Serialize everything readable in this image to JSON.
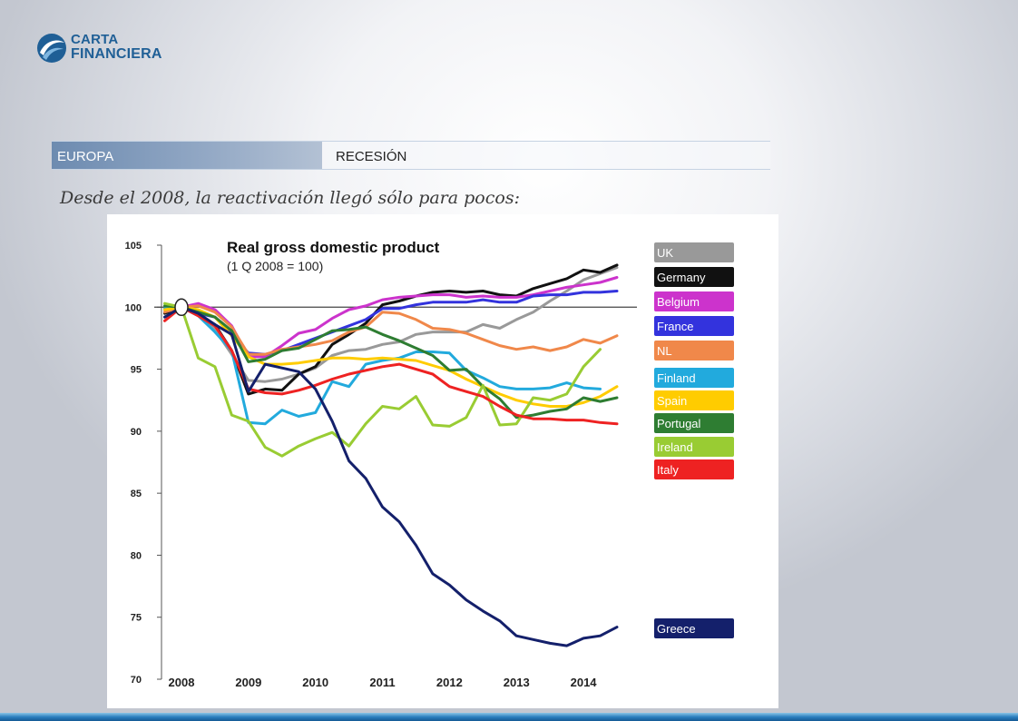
{
  "brand": {
    "line1": "CARTA",
    "line2": "FINANCIERA",
    "color": "#1f5f96"
  },
  "header": {
    "section": "EUROPA",
    "topic": "RECESIÓN"
  },
  "subtitle": "Desde el 2008, la reactivación llegó sólo para pocos:",
  "chart_data": {
    "type": "line",
    "title": "Real gross domestic product",
    "subtitle": "(1 Q 2008 = 100)",
    "xlabel": "",
    "ylabel": "",
    "x_ticks": [
      "2008",
      "2009",
      "2010",
      "2011",
      "2012",
      "2013",
      "2014"
    ],
    "y_ticks": [
      70,
      75,
      80,
      85,
      90,
      95,
      100,
      105
    ],
    "ylim": [
      70,
      105
    ],
    "xlim": [
      2008.0,
      2014.5
    ],
    "baseline": 100,
    "grid": false,
    "legend_position": "right",
    "series": [
      {
        "name": "UK",
        "color": "#999999",
        "x": [
          2007.75,
          2008.0,
          2008.25,
          2008.5,
          2008.75,
          2009.0,
          2009.25,
          2009.5,
          2009.75,
          2010.0,
          2010.25,
          2010.5,
          2010.75,
          2011.0,
          2011.25,
          2011.5,
          2011.75,
          2012.0,
          2012.25,
          2012.5,
          2012.75,
          2013.0,
          2013.25,
          2013.5,
          2013.75,
          2014.0,
          2014.25,
          2014.5
        ],
        "values": [
          99.5,
          100,
          99.4,
          98.2,
          96.2,
          94.1,
          94.0,
          94.2,
          94.6,
          95.1,
          96.1,
          96.5,
          96.6,
          97.0,
          97.2,
          97.8,
          98.0,
          98.0,
          98.0,
          98.6,
          98.3,
          99.0,
          99.6,
          100.5,
          101.3,
          102.2,
          102.7,
          103.2
        ]
      },
      {
        "name": "Germany",
        "color": "#111111",
        "x": [
          2007.75,
          2008.0,
          2008.25,
          2008.5,
          2008.75,
          2009.0,
          2009.25,
          2009.5,
          2009.75,
          2010.0,
          2010.25,
          2010.5,
          2010.75,
          2011.0,
          2011.25,
          2011.5,
          2011.75,
          2012.0,
          2012.25,
          2012.5,
          2012.75,
          2013.0,
          2013.25,
          2013.5,
          2013.75,
          2014.0,
          2014.25,
          2014.5
        ],
        "values": [
          99.5,
          100,
          99.4,
          98.6,
          96.5,
          93.0,
          93.4,
          93.3,
          94.6,
          95.2,
          97.0,
          97.8,
          98.7,
          100.2,
          100.5,
          100.9,
          101.2,
          101.3,
          101.2,
          101.3,
          101.0,
          100.9,
          101.5,
          101.9,
          102.3,
          103.0,
          102.8,
          103.4
        ]
      },
      {
        "name": "Belgium",
        "color": "#cc33cc",
        "x": [
          2007.75,
          2008.0,
          2008.25,
          2008.5,
          2008.75,
          2009.0,
          2009.25,
          2009.5,
          2009.75,
          2010.0,
          2010.25,
          2010.5,
          2010.75,
          2011.0,
          2011.25,
          2011.5,
          2011.75,
          2012.0,
          2012.25,
          2012.5,
          2012.75,
          2013.0,
          2013.25,
          2013.5,
          2013.75,
          2014.0,
          2014.25,
          2014.5
        ],
        "values": [
          99.8,
          100,
          100.3,
          99.8,
          98.5,
          96.0,
          96.0,
          96.9,
          97.9,
          98.2,
          99.1,
          99.8,
          100.1,
          100.6,
          100.8,
          100.9,
          101.0,
          101.0,
          100.8,
          100.9,
          100.8,
          100.8,
          101.0,
          101.3,
          101.6,
          101.8,
          102.0,
          102.4
        ]
      },
      {
        "name": "France",
        "color": "#3333dd",
        "x": [
          2007.75,
          2008.0,
          2008.25,
          2008.5,
          2008.75,
          2009.0,
          2009.25,
          2009.5,
          2009.75,
          2010.0,
          2010.25,
          2010.5,
          2010.75,
          2011.0,
          2011.25,
          2011.5,
          2011.75,
          2012.0,
          2012.25,
          2012.5,
          2012.75,
          2013.0,
          2013.25,
          2013.5,
          2013.75,
          2014.0,
          2014.25,
          2014.5
        ],
        "values": [
          99.8,
          100,
          99.5,
          99.2,
          97.8,
          96.3,
          96.2,
          96.5,
          97.0,
          97.5,
          98.0,
          98.5,
          99.0,
          99.9,
          99.9,
          100.2,
          100.4,
          100.4,
          100.4,
          100.6,
          100.4,
          100.4,
          100.9,
          101.0,
          101.0,
          101.2,
          101.2,
          101.3
        ]
      },
      {
        "name": "NL",
        "color": "#f0884a",
        "x": [
          2007.75,
          2008.0,
          2008.25,
          2008.5,
          2008.75,
          2009.0,
          2009.25,
          2009.5,
          2009.75,
          2010.0,
          2010.25,
          2010.5,
          2010.75,
          2011.0,
          2011.25,
          2011.5,
          2011.75,
          2012.0,
          2012.25,
          2012.5,
          2012.75,
          2013.0,
          2013.25,
          2013.5,
          2013.75,
          2014.0,
          2014.25,
          2014.5
        ],
        "values": [
          99.6,
          100,
          100.1,
          99.6,
          98.4,
          96.2,
          96.2,
          96.6,
          96.8,
          97.0,
          97.3,
          98.0,
          98.4,
          99.6,
          99.5,
          99.0,
          98.3,
          98.2,
          97.9,
          97.4,
          96.9,
          96.6,
          96.8,
          96.5,
          96.8,
          97.4,
          97.1,
          97.7
        ]
      },
      {
        "name": "Finland",
        "color": "#22aadd",
        "x": [
          2007.75,
          2008.0,
          2008.25,
          2008.5,
          2008.75,
          2009.0,
          2009.25,
          2009.5,
          2009.75,
          2010.0,
          2010.25,
          2010.5,
          2010.75,
          2011.0,
          2011.25,
          2011.5,
          2011.75,
          2012.0,
          2012.25,
          2012.5,
          2012.75,
          2013.0,
          2013.25,
          2013.5,
          2013.75,
          2014.0,
          2014.25
        ],
        "values": [
          99.9,
          100,
          99.3,
          98.0,
          96.5,
          90.7,
          90.6,
          91.7,
          91.2,
          91.5,
          94.0,
          93.6,
          95.4,
          95.7,
          95.9,
          96.4,
          96.4,
          96.3,
          94.9,
          94.3,
          93.6,
          93.4,
          93.4,
          93.5,
          93.9,
          93.5,
          93.4
        ]
      },
      {
        "name": "Spain",
        "color": "#ffcc00",
        "x": [
          2007.75,
          2008.0,
          2008.25,
          2008.5,
          2008.75,
          2009.0,
          2009.25,
          2009.5,
          2009.75,
          2010.0,
          2010.25,
          2010.5,
          2010.75,
          2011.0,
          2011.25,
          2011.5,
          2011.75,
          2012.0,
          2012.25,
          2012.5,
          2012.75,
          2013.0,
          2013.25,
          2013.5,
          2013.75,
          2014.0,
          2014.25,
          2014.5
        ],
        "values": [
          99.8,
          100,
          99.8,
          99.2,
          97.7,
          96.0,
          95.4,
          95.4,
          95.5,
          95.7,
          95.9,
          95.9,
          95.8,
          95.9,
          95.8,
          95.7,
          95.3,
          94.9,
          94.2,
          93.6,
          93.0,
          92.5,
          92.2,
          92.0,
          92.0,
          92.3,
          92.8,
          93.6
        ]
      },
      {
        "name": "Portugal",
        "color": "#2e7d32",
        "x": [
          2007.75,
          2008.0,
          2008.25,
          2008.5,
          2008.75,
          2009.0,
          2009.25,
          2009.5,
          2009.75,
          2010.0,
          2010.25,
          2010.5,
          2010.75,
          2011.0,
          2011.25,
          2011.5,
          2011.75,
          2012.0,
          2012.25,
          2012.5,
          2012.75,
          2013.0,
          2013.25,
          2013.5,
          2013.75,
          2014.0,
          2014.25,
          2014.5
        ],
        "values": [
          100.1,
          100,
          99.6,
          99.2,
          98.1,
          95.6,
          95.8,
          96.5,
          96.7,
          97.4,
          98.1,
          98.2,
          98.4,
          97.8,
          97.3,
          96.7,
          96.1,
          94.9,
          95.0,
          93.6,
          92.6,
          91.1,
          91.3,
          91.6,
          91.8,
          92.7,
          92.4,
          92.7
        ]
      },
      {
        "name": "Ireland",
        "color": "#99cc33",
        "x": [
          2007.75,
          2008.0,
          2008.25,
          2008.5,
          2008.75,
          2009.0,
          2009.25,
          2009.5,
          2009.75,
          2010.0,
          2010.25,
          2010.5,
          2010.75,
          2011.0,
          2011.25,
          2011.5,
          2011.75,
          2012.0,
          2012.25,
          2012.5,
          2012.75,
          2013.0,
          2013.25,
          2013.5,
          2013.75,
          2014.0,
          2014.25
        ],
        "values": [
          100.3,
          100,
          95.9,
          95.2,
          91.3,
          90.8,
          88.7,
          88.0,
          88.8,
          89.4,
          89.9,
          88.8,
          90.6,
          92.0,
          91.8,
          92.8,
          90.5,
          90.4,
          91.1,
          93.7,
          90.5,
          90.6,
          92.7,
          92.5,
          93.0,
          95.2,
          96.6
        ]
      },
      {
        "name": "Italy",
        "color": "#ee2222",
        "x": [
          2007.75,
          2008.0,
          2008.25,
          2008.5,
          2008.75,
          2009.0,
          2009.25,
          2009.5,
          2009.75,
          2010.0,
          2010.25,
          2010.5,
          2010.75,
          2011.0,
          2011.25,
          2011.5,
          2011.75,
          2012.0,
          2012.25,
          2012.5,
          2012.75,
          2013.0,
          2013.25,
          2013.5,
          2013.75,
          2014.0,
          2014.25,
          2014.5
        ],
        "values": [
          98.9,
          100,
          99.3,
          98.5,
          96.5,
          93.4,
          93.1,
          93.0,
          93.3,
          93.7,
          94.2,
          94.6,
          94.9,
          95.2,
          95.4,
          95.0,
          94.6,
          93.6,
          93.2,
          92.8,
          92.0,
          91.3,
          91.0,
          91.0,
          90.9,
          90.9,
          90.7,
          90.6
        ]
      },
      {
        "name": "Greece",
        "color": "#14206b",
        "x": [
          2007.75,
          2008.0,
          2008.25,
          2008.5,
          2008.75,
          2009.0,
          2009.25,
          2009.5,
          2009.75,
          2010.0,
          2010.25,
          2010.5,
          2010.75,
          2011.0,
          2011.25,
          2011.5,
          2011.75,
          2012.0,
          2012.25,
          2012.5,
          2012.75,
          2013.0,
          2013.25,
          2013.5,
          2013.75,
          2014.0,
          2014.25,
          2014.5
        ],
        "values": [
          99.2,
          100,
          99.5,
          98.6,
          97.8,
          93.2,
          95.4,
          95.1,
          94.8,
          93.4,
          90.8,
          87.6,
          86.2,
          83.9,
          82.7,
          80.8,
          78.5,
          77.6,
          76.4,
          75.5,
          74.7,
          73.5,
          73.2,
          72.9,
          72.7,
          73.3,
          73.5,
          74.2
        ]
      }
    ]
  }
}
